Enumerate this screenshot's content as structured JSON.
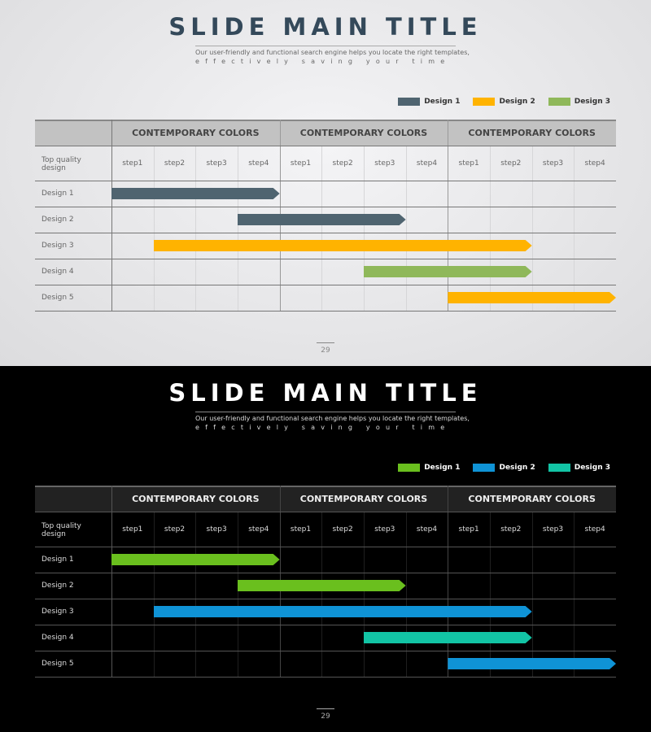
{
  "slides": [
    {
      "theme": "light",
      "title": "SLIDE MAIN TITLE",
      "subtitle_line1": "Our user-friendly and functional search engine helps you locate the right templates,",
      "subtitle_line2": "effectively saving your time",
      "legend": [
        {
          "label": "Design 1",
          "color": "#4f6470"
        },
        {
          "label": "Design 2",
          "color": "#ffb300"
        },
        {
          "label": "Design 3",
          "color": "#8fb85a"
        }
      ],
      "page_number": "29"
    },
    {
      "theme": "dark",
      "title": "SLIDE MAIN TITLE",
      "subtitle_line1": "Our user-friendly and functional search engine helps you locate the right templates,",
      "subtitle_line2": "effectively saving your time",
      "legend": [
        {
          "label": "Design 1",
          "color": "#6abf1e"
        },
        {
          "label": "Design 2",
          "color": "#0f93d6"
        },
        {
          "label": "Design 3",
          "color": "#12c4a5"
        }
      ],
      "page_number": "29"
    }
  ],
  "chart_data": {
    "type": "gantt",
    "corner_label": "Top quality design",
    "groups": [
      "CONTEMPORARY COLORS",
      "CONTEMPORARY COLORS",
      "CONTEMPORARY COLORS"
    ],
    "steps": [
      "step1",
      "step2",
      "step3",
      "step4",
      "step1",
      "step2",
      "step3",
      "step4",
      "step1",
      "step2",
      "step3",
      "step4"
    ],
    "rows": [
      {
        "label": "Design 1",
        "start": 0,
        "end": 4,
        "legend_index": 0
      },
      {
        "label": "Design 2",
        "start": 3,
        "end": 7,
        "legend_index": 0
      },
      {
        "label": "Design 3",
        "start": 1,
        "end": 10,
        "legend_index": 1
      },
      {
        "label": "Design 4",
        "start": 6,
        "end": 10,
        "legend_index": 2
      },
      {
        "label": "Design 5",
        "start": 8,
        "end": 12,
        "legend_index": 1
      }
    ]
  }
}
